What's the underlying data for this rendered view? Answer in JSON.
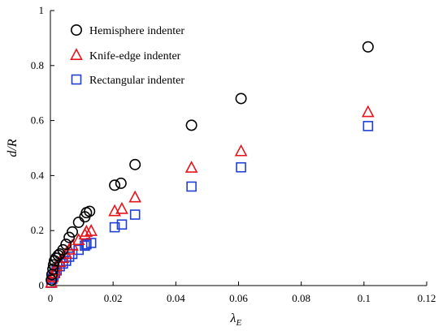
{
  "chart_data": {
    "type": "scatter",
    "title": "",
    "xlabel": "λE",
    "ylabel": "d/R",
    "xlim": [
      0,
      0.12
    ],
    "ylim": [
      0,
      1
    ],
    "xticks": [
      0,
      0.02,
      0.04,
      0.06,
      0.08,
      0.1,
      0.12
    ],
    "xtick_labels": [
      "0",
      "0.02",
      "0.04",
      "0.06",
      "0.08",
      "0.1",
      "0.12"
    ],
    "yticks": [
      0,
      0.2,
      0.4,
      0.6,
      0.8,
      1
    ],
    "ytick_labels": [
      "0",
      "0.2",
      "0.4",
      "0.6",
      "0.8",
      "1"
    ],
    "grid": false,
    "legend_position": "top-left",
    "series": [
      {
        "name": "Hemisphere indenter",
        "marker": "circle",
        "color": "#000000",
        "points": [
          [
            0.0003,
            0.02
          ],
          [
            0.0005,
            0.04
          ],
          [
            0.0008,
            0.06
          ],
          [
            0.001,
            0.075
          ],
          [
            0.0013,
            0.09
          ],
          [
            0.0018,
            0.1
          ],
          [
            0.0025,
            0.11
          ],
          [
            0.003,
            0.115
          ],
          [
            0.004,
            0.13
          ],
          [
            0.005,
            0.15
          ],
          [
            0.006,
            0.175
          ],
          [
            0.007,
            0.195
          ],
          [
            0.009,
            0.23
          ],
          [
            0.011,
            0.25
          ],
          [
            0.0115,
            0.265
          ],
          [
            0.0125,
            0.27
          ],
          [
            0.0205,
            0.365
          ],
          [
            0.0225,
            0.372
          ],
          [
            0.027,
            0.44
          ],
          [
            0.045,
            0.583
          ],
          [
            0.0608,
            0.68
          ],
          [
            0.1013,
            0.868
          ]
        ]
      },
      {
        "name": "Knife-edge indenter",
        "marker": "triangle",
        "color": "#e8141c",
        "points": [
          [
            0.0003,
            0.01
          ],
          [
            0.0006,
            0.03
          ],
          [
            0.001,
            0.045
          ],
          [
            0.0015,
            0.055
          ],
          [
            0.002,
            0.07
          ],
          [
            0.003,
            0.085
          ],
          [
            0.004,
            0.1
          ],
          [
            0.005,
            0.115
          ],
          [
            0.006,
            0.13
          ],
          [
            0.007,
            0.145
          ],
          [
            0.009,
            0.165
          ],
          [
            0.011,
            0.185
          ],
          [
            0.0115,
            0.195
          ],
          [
            0.013,
            0.198
          ],
          [
            0.0205,
            0.27
          ],
          [
            0.0228,
            0.278
          ],
          [
            0.027,
            0.32
          ],
          [
            0.045,
            0.428
          ],
          [
            0.0608,
            0.488
          ],
          [
            0.1013,
            0.63
          ]
        ]
      },
      {
        "name": "Rectangular indenter",
        "marker": "square",
        "color": "#1f3fd6",
        "points": [
          [
            0.0003,
            0.01
          ],
          [
            0.0006,
            0.025
          ],
          [
            0.001,
            0.035
          ],
          [
            0.0015,
            0.045
          ],
          [
            0.002,
            0.055
          ],
          [
            0.003,
            0.07
          ],
          [
            0.004,
            0.08
          ],
          [
            0.005,
            0.09
          ],
          [
            0.006,
            0.105
          ],
          [
            0.007,
            0.115
          ],
          [
            0.009,
            0.13
          ],
          [
            0.011,
            0.145
          ],
          [
            0.0115,
            0.15
          ],
          [
            0.013,
            0.155
          ],
          [
            0.0205,
            0.212
          ],
          [
            0.0228,
            0.222
          ],
          [
            0.027,
            0.258
          ],
          [
            0.045,
            0.36
          ],
          [
            0.0608,
            0.43
          ],
          [
            0.1013,
            0.58
          ]
        ]
      }
    ]
  }
}
